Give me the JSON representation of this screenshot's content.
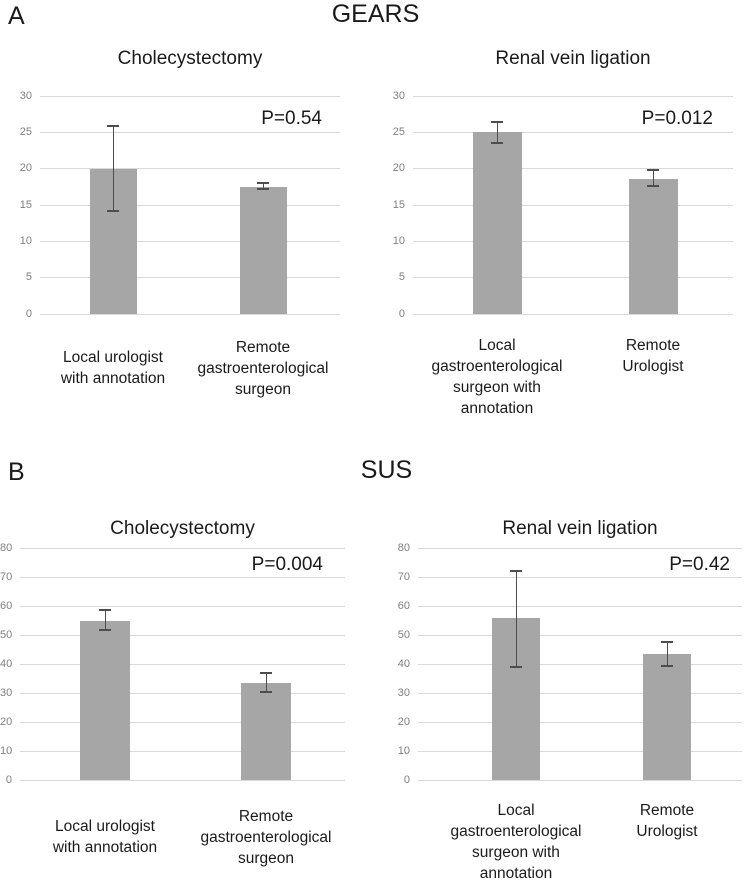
{
  "panels": [
    {
      "label": "A",
      "title": "GEARS"
    },
    {
      "label": "B",
      "title": "SUS"
    }
  ],
  "colors": {
    "bar": "#a6a6a6",
    "error_bar": "#4d4d4d",
    "gridline": "#d9d9d9",
    "tick_label": "#7f7f7f",
    "text": "#1a1a1a",
    "background": "#ffffff"
  },
  "chart_data": [
    {
      "type": "bar",
      "panel": "A",
      "panel_title": "GEARS",
      "title": "Cholecystectomy",
      "annotation": "P=0.54",
      "categories": [
        [
          "Local urologist",
          "with annotation"
        ],
        [
          "Remote",
          "gastroenterological",
          "surgeon"
        ]
      ],
      "values": [
        20,
        17.5
      ],
      "error_low": [
        14,
        17
      ],
      "error_high": [
        26,
        18.2
      ],
      "ylim": [
        0,
        30
      ],
      "yticks": [
        0,
        5,
        10,
        15,
        20,
        25,
        30
      ],
      "grid": true,
      "legend": false
    },
    {
      "type": "bar",
      "panel": "A",
      "panel_title": "GEARS",
      "title": "Renal vein ligation",
      "annotation": "P=0.012",
      "categories": [
        [
          "Local",
          "gastroenterological",
          "surgeon with",
          "annotation"
        ],
        [
          "Remote",
          "Urologist"
        ]
      ],
      "values": [
        25,
        18.6
      ],
      "error_low": [
        23.4,
        17.5
      ],
      "error_high": [
        26.6,
        20
      ],
      "ylim": [
        0,
        30
      ],
      "yticks": [
        0,
        5,
        10,
        15,
        20,
        25,
        30
      ],
      "grid": true,
      "legend": false
    },
    {
      "type": "bar",
      "panel": "B",
      "panel_title": "SUS",
      "title": "Cholecystectomy",
      "annotation": "P=0.004",
      "categories": [
        [
          "Local urologist",
          "with annotation"
        ],
        [
          "Remote",
          "gastroenterological",
          "surgeon"
        ]
      ],
      "values": [
        55,
        33.5
      ],
      "error_low": [
        51.3,
        30
      ],
      "error_high": [
        58.8,
        37.4
      ],
      "ylim": [
        0,
        80
      ],
      "yticks": [
        0,
        10,
        20,
        30,
        40,
        50,
        60,
        70,
        80
      ],
      "grid": true,
      "legend": false
    },
    {
      "type": "bar",
      "panel": "B",
      "panel_title": "SUS",
      "title": "Renal vein ligation",
      "annotation": "P=0.42",
      "categories": [
        [
          "Local",
          "gastroenterological",
          "surgeon with",
          "annotation"
        ],
        [
          "Remote",
          "Urologist"
        ]
      ],
      "values": [
        56,
        43.3
      ],
      "error_low": [
        38.6,
        39
      ],
      "error_high": [
        72.5,
        48
      ],
      "ylim": [
        0,
        80
      ],
      "yticks": [
        0,
        10,
        20,
        30,
        40,
        50,
        60,
        70,
        80
      ],
      "grid": true,
      "legend": false
    }
  ]
}
